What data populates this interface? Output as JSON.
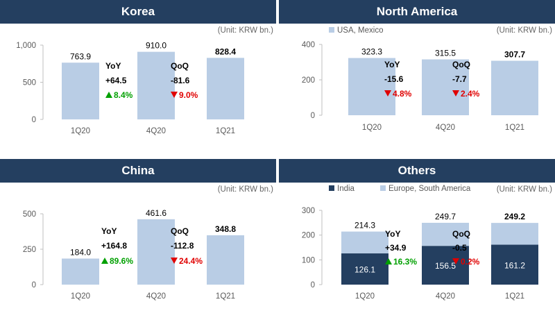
{
  "colors": {
    "header": "#243f60",
    "light_bar": "#b9cde5",
    "dark_bar": "#243f60",
    "up": "#00a000",
    "down": "#e00000"
  },
  "chart_data": [
    {
      "type": "bar",
      "title": "Korea",
      "unit": "(Unit: KRW bn.)",
      "categories": [
        "1Q20",
        "4Q20",
        "1Q21"
      ],
      "values": [
        763.9,
        910.0,
        828.4
      ],
      "value_labels": [
        "763.9",
        "910.0",
        "828.4"
      ],
      "ylim": [
        0,
        1000
      ],
      "yticks": [
        "0",
        "500",
        "1,000"
      ],
      "yoy": {
        "label": "YoY",
        "value": "+64.5",
        "pct": "8.4%",
        "dir": "up"
      },
      "qoq": {
        "label": "QoQ",
        "value": "-81.6",
        "pct": "9.0%",
        "dir": "down"
      }
    },
    {
      "type": "bar",
      "title": "North America",
      "unit": "(Unit: KRW bn.)",
      "legend": [
        "USA, Mexico"
      ],
      "categories": [
        "1Q20",
        "4Q20",
        "1Q21"
      ],
      "values": [
        323.3,
        315.5,
        307.7
      ],
      "value_labels": [
        "323.3",
        "315.5",
        "307.7"
      ],
      "ylim": [
        0,
        400
      ],
      "yticks": [
        "0",
        "200",
        "400"
      ],
      "yoy": {
        "label": "YoY",
        "value": "-15.6",
        "pct": "4.8%",
        "dir": "down"
      },
      "qoq": {
        "label": "QoQ",
        "value": "-7.7",
        "pct": "2.4%",
        "dir": "down"
      }
    },
    {
      "type": "bar",
      "title": "China",
      "unit": "(Unit: KRW bn.)",
      "categories": [
        "1Q20",
        "4Q20",
        "1Q21"
      ],
      "values": [
        184.0,
        461.6,
        348.8
      ],
      "value_labels": [
        "184.0",
        "461.6",
        "348.8"
      ],
      "ylim": [
        0,
        500
      ],
      "yticks": [
        "0",
        "250",
        "500"
      ],
      "yoy": {
        "label": "YoY",
        "value": "+164.8",
        "pct": "89.6%",
        "dir": "up"
      },
      "qoq": {
        "label": "QoQ",
        "value": "-112.8",
        "pct": "24.4%",
        "dir": "down"
      }
    },
    {
      "type": "stacked-bar",
      "title": "Others",
      "unit": "(Unit: KRW bn.)",
      "legend": [
        "India",
        "Europe, South America"
      ],
      "categories": [
        "1Q20",
        "4Q20",
        "1Q21"
      ],
      "series": [
        {
          "name": "India",
          "values": [
            126.1,
            156.5,
            161.2
          ]
        },
        {
          "name": "Europe, South America",
          "values": [
            88.2,
            93.2,
            88.0
          ]
        }
      ],
      "segment_labels": [
        "126.1",
        "156.5",
        "161.2"
      ],
      "totals": [
        214.3,
        249.7,
        249.2
      ],
      "value_labels": [
        "214.3",
        "249.7",
        "249.2"
      ],
      "ylim": [
        0,
        300
      ],
      "yticks": [
        "0",
        "100",
        "200",
        "300"
      ],
      "yoy": {
        "label": "YoY",
        "value": "+34.9",
        "pct": "16.3%",
        "dir": "up"
      },
      "qoq": {
        "label": "QoQ",
        "value": "-0.5",
        "pct": "0.2%",
        "dir": "down"
      }
    }
  ]
}
